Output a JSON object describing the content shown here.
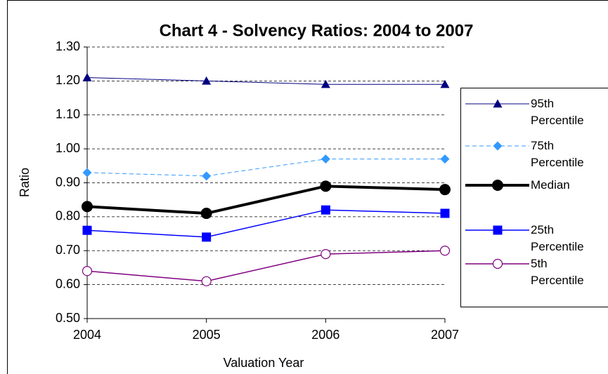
{
  "chart_data": {
    "type": "line",
    "title": "Chart 4 - Solvency Ratios: 2004 to 2007",
    "x_label": "Valuation Year",
    "y_label": "Ratio",
    "categories": [
      "2004",
      "2005",
      "2006",
      "2007"
    ],
    "ylim": [
      0.5,
      1.3
    ],
    "yticks": [
      {
        "value": 0.5,
        "label": "0.50"
      },
      {
        "value": 0.6,
        "label": "0.60"
      },
      {
        "value": 0.7,
        "label": "0.70"
      },
      {
        "value": 0.8,
        "label": "0.80"
      },
      {
        "value": 0.9,
        "label": "0.90"
      },
      {
        "value": 1.0,
        "label": "1.00"
      },
      {
        "value": 1.1,
        "label": "1.10"
      },
      {
        "value": 1.2,
        "label": "1.20"
      },
      {
        "value": 1.3,
        "label": "1.30"
      }
    ],
    "grid": true,
    "legend": "right",
    "series": [
      {
        "name": "95th Percentile",
        "color": "#000080",
        "marker": "triangle",
        "dashed": false,
        "width": 1,
        "values": [
          1.21,
          1.2,
          1.19,
          1.19
        ]
      },
      {
        "name": "75th Percentile",
        "color": "#3399ff",
        "marker": "diamond",
        "dashed": true,
        "width": 1,
        "values": [
          0.93,
          0.92,
          0.97,
          0.97
        ]
      },
      {
        "name": "Median",
        "color": "#000000",
        "marker": "circle",
        "dashed": false,
        "width": 4,
        "values": [
          0.83,
          0.81,
          0.89,
          0.88
        ]
      },
      {
        "name": "25th Percentile",
        "color": "#0000ff",
        "marker": "square",
        "dashed": false,
        "width": 1.5,
        "values": [
          0.76,
          0.74,
          0.82,
          0.81
        ]
      },
      {
        "name": "5th Percentile",
        "color": "#800080",
        "marker": "open-circle",
        "dashed": false,
        "width": 1.5,
        "values": [
          0.64,
          0.61,
          0.69,
          0.7
        ]
      }
    ]
  }
}
